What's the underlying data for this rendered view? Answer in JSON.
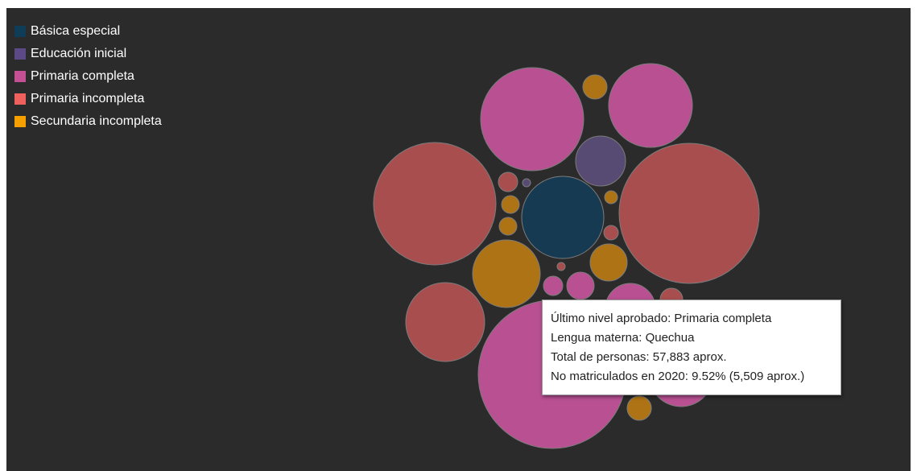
{
  "legend": [
    {
      "label": "Básica especial",
      "color": "#0f3d57"
    },
    {
      "label": "Educación inicial",
      "color": "#5c4a86"
    },
    {
      "label": "Primaria completa",
      "color": "#c25092"
    },
    {
      "label": "Primaria incompleta",
      "color": "#f0605c"
    },
    {
      "label": "Secundaria incompleta",
      "color": "#f5a000"
    }
  ],
  "chart_data": {
    "type": "bubble",
    "background": "#2b2b2b",
    "categories": [
      "Básica especial",
      "Educación inicial",
      "Primaria completa",
      "Primaria incompleta",
      "Secundaria incompleta"
    ],
    "fill_colors": {
      "Básica especial": "#163a52",
      "Educación inicial": "#574a73",
      "Primaria completa": "#b85092",
      "Primaria incompleta": "#a94e4e",
      "Secundaria incompleta": "#ad7314"
    },
    "highlighted": {
      "category": "Primaria completa",
      "lengua": "Quechua",
      "total": 57883,
      "pct_no_matriculados": 9.52,
      "no_matriculados": 5509
    },
    "legend_position": "top-left"
  },
  "tooltip": {
    "line1": "Último nivel aprobado: Primaria completa",
    "line2": "Lengua materna: Quechua",
    "line3": "Total de personas: 57,883 aprox.",
    "line4": "No matriculados en 2020: 9.52% (5,509 aprox.)"
  }
}
